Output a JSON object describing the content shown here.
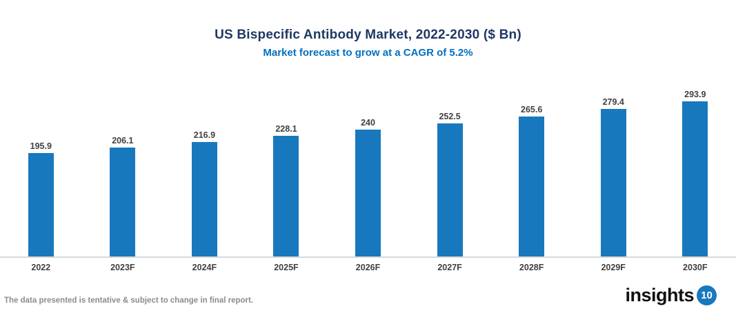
{
  "header": {
    "title": "US Bispecific Antibody Market, 2022-2030 ($ Bn)",
    "subtitle": "Market forecast to grow at a CAGR of 5.2%"
  },
  "chart_data": {
    "type": "bar",
    "categories": [
      "2022",
      "2023F",
      "2024F",
      "2025F",
      "2026F",
      "2027F",
      "2028F",
      "2029F",
      "2030F"
    ],
    "values": [
      195.9,
      206.1,
      216.9,
      228.1,
      240,
      252.5,
      265.6,
      279.4,
      293.9
    ],
    "value_labels": [
      "195.9",
      "206.1",
      "216.9",
      "228.1",
      "240",
      "252.5",
      "265.6",
      "279.4",
      "293.9"
    ],
    "title": "US Bispecific Antibody Market, 2022-2030 ($ Bn)",
    "subtitle": "Market forecast to grow at a CAGR of 5.2%",
    "xlabel": "",
    "ylabel": "",
    "ylim": [
      0,
      310
    ],
    "grid": false,
    "legend": false,
    "data_labels_position": "above-bars",
    "y_axis_visible": false
  },
  "footer": {
    "disclaimer": "The data presented is tentative & subject to change in final report.",
    "logo_text": "insights",
    "logo_badge": "10"
  },
  "colors": {
    "title": "#1f3864",
    "subtitle": "#0070c0",
    "bar": "#1878be",
    "axis_line": "#d9d9d9",
    "label": "#404040",
    "footer_text": "#8c8c8c",
    "logo_badge_bg": "#1878be"
  }
}
